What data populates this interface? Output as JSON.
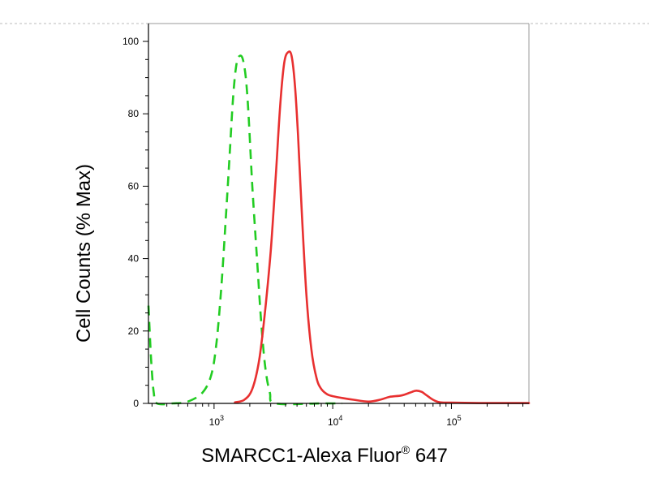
{
  "chart_data": {
    "type": "line",
    "xlabel": "SMARCC1-Alexa Fluor",
    "xlabel_mark": "®",
    "xlabel_suffix": " 647",
    "ylabel": "Cell Counts (% Max)",
    "x_scale": "log",
    "xlim": [
      280,
      450000
    ],
    "ylim": [
      0,
      100
    ],
    "y_ticks": [
      0,
      20,
      40,
      60,
      80,
      100
    ],
    "x_ticks": [
      {
        "value": 1000,
        "base": "10",
        "exp": "3"
      },
      {
        "value": 10000,
        "base": "10",
        "exp": "4"
      },
      {
        "value": 100000,
        "base": "10",
        "exp": "5"
      }
    ],
    "grid": false,
    "series": [
      {
        "color": "#22cc22",
        "style": "dashed",
        "points": [
          [
            280,
            27
          ],
          [
            295,
            12
          ],
          [
            310,
            3
          ],
          [
            330,
            0
          ],
          [
            450,
            0
          ],
          [
            600,
            0.5
          ],
          [
            800,
            3
          ],
          [
            950,
            8
          ],
          [
            1050,
            17
          ],
          [
            1150,
            32
          ],
          [
            1250,
            50
          ],
          [
            1350,
            68
          ],
          [
            1450,
            85
          ],
          [
            1550,
            94
          ],
          [
            1650,
            96
          ],
          [
            1750,
            95
          ],
          [
            1850,
            90
          ],
          [
            1950,
            80
          ],
          [
            2100,
            60
          ],
          [
            2300,
            40
          ],
          [
            2500,
            22
          ],
          [
            2700,
            10
          ],
          [
            2950,
            3
          ],
          [
            3300,
            0
          ],
          [
            8000,
            0
          ],
          [
            12000,
            0
          ]
        ]
      },
      {
        "color": "#e83030",
        "style": "solid",
        "points": [
          [
            1500,
            0.3
          ],
          [
            1800,
            1
          ],
          [
            2100,
            4
          ],
          [
            2400,
            12
          ],
          [
            2700,
            26
          ],
          [
            3000,
            42
          ],
          [
            3300,
            62
          ],
          [
            3600,
            82
          ],
          [
            3900,
            94
          ],
          [
            4200,
            97
          ],
          [
            4500,
            96
          ],
          [
            4800,
            88
          ],
          [
            5100,
            74
          ],
          [
            5500,
            52
          ],
          [
            6000,
            30
          ],
          [
            6600,
            15
          ],
          [
            7300,
            7
          ],
          [
            8000,
            4
          ],
          [
            9000,
            2.5
          ],
          [
            10000,
            2
          ],
          [
            12000,
            1.5
          ],
          [
            15000,
            1
          ],
          [
            20000,
            0.5
          ],
          [
            25000,
            1
          ],
          [
            30000,
            1.8
          ],
          [
            38000,
            2.2
          ],
          [
            45000,
            3
          ],
          [
            50000,
            3.5
          ],
          [
            56000,
            3.2
          ],
          [
            62000,
            2.2
          ],
          [
            70000,
            1
          ],
          [
            80000,
            0.3
          ],
          [
            100000,
            0.2
          ],
          [
            200000,
            0.1
          ],
          [
            450000,
            0.1
          ]
        ]
      }
    ]
  }
}
